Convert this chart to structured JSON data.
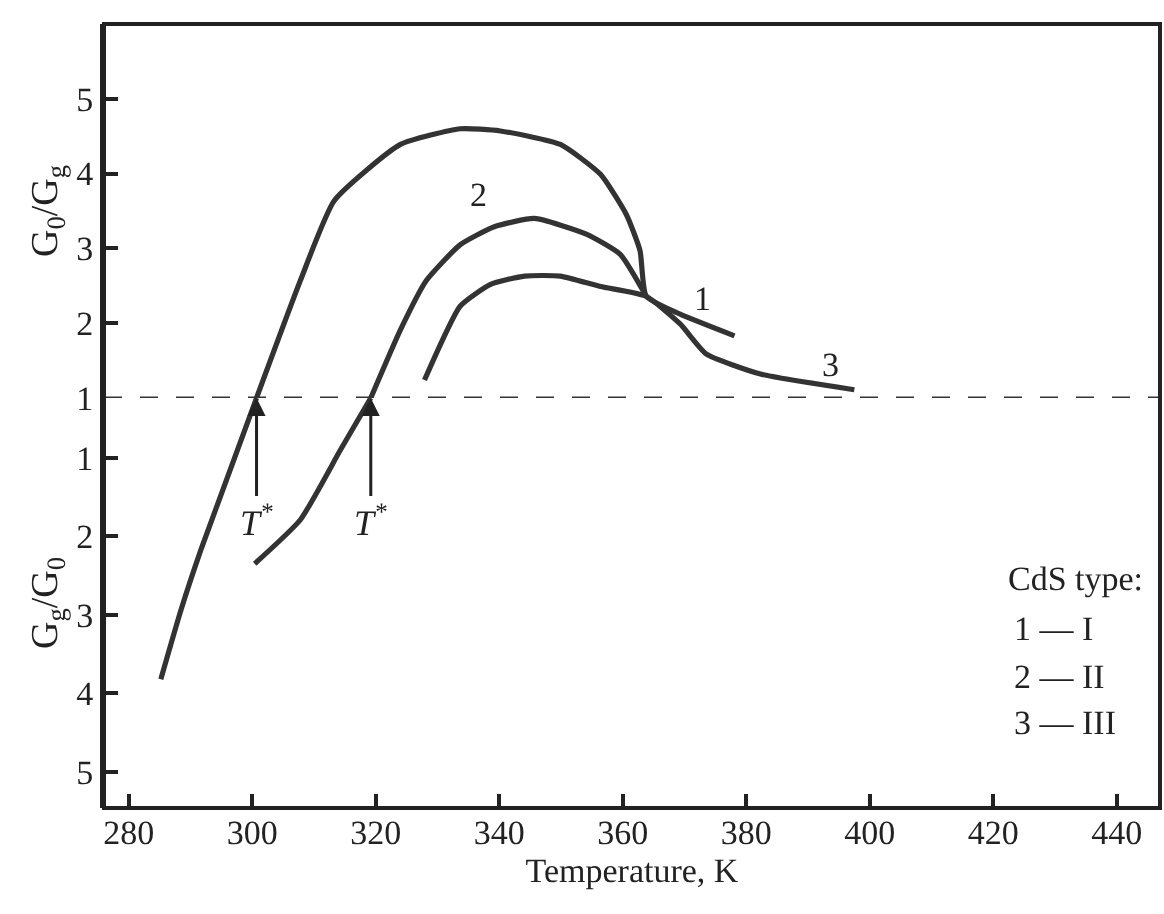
{
  "chart_data": [
    {
      "type": "line",
      "ylabel": "G$_{0}$/G$_{g}$",
      "xlim": [
        276,
        447
      ],
      "ylim": [
        1,
        6
      ],
      "yticks": [
        1,
        2,
        3,
        4,
        5
      ],
      "tick_labels": "y",
      "marker": "none",
      "line_style": "solid",
      "series": [
        {
          "color": "#333333",
          "x": [
            300.7,
            307.8,
            313.3,
            324.0,
            333.7,
            340.2,
            349.9,
            356.4,
            360.6,
            362.8,
            363.8,
            369.3,
            378.1
          ],
          "values": [
            1.0,
            2.57,
            3.64,
            4.39,
            4.6,
            4.57,
            4.39,
            3.99,
            3.45,
            2.97,
            2.36,
            2.12,
            1.83
          ]
        },
        {
          "color": "#333333",
          "x": [
            319.2,
            324.0,
            328.2,
            333.7,
            339.2,
            345.7,
            354.1,
            359.6,
            363.8
          ],
          "values": [
            1.0,
            1.91,
            2.57,
            3.05,
            3.29,
            3.4,
            3.19,
            2.92,
            2.36
          ]
        },
        {
          "color": "#333333",
          "x": [
            327.9,
            333.7,
            338.6,
            344.1,
            349.9,
            356.4,
            363.8,
            369.3,
            373.5,
            382.3,
            397.5
          ],
          "values": [
            1.24,
            2.23,
            2.52,
            2.63,
            2.63,
            2.49,
            2.36,
            1.99,
            1.59,
            1.32,
            1.11
          ]
        }
      ],
      "ref_lines": [
        {
          "axis": "y",
          "value": 1,
          "color": "#333333",
          "line_style": "dashed"
        }
      ],
      "annotations": [
        "1",
        "2",
        "3"
      ]
    },
    {
      "type": "line",
      "xlabel": "Temperature, K",
      "ylabel": "G$_{g}$/G$_{0}$",
      "xlim": [
        276,
        447
      ],
      "xticks": [
        280,
        300,
        320,
        340,
        360,
        380,
        400,
        420,
        440
      ],
      "ylim": [
        5.46,
        0.24
      ],
      "yticks": [
        1,
        2,
        3,
        4,
        5
      ],
      "marker": "none",
      "line_style": "solid",
      "series": [
        {
          "color": "#333333",
          "x": [
            285.2,
            288.5,
            291.7,
            300.7
          ],
          "values": [
            3.82,
            2.93,
            2.17,
            0.24
          ]
        },
        {
          "color": "#333333",
          "x": [
            300.4,
            307.8,
            314.3,
            319.2
          ],
          "values": [
            2.35,
            1.79,
            0.9,
            0.24
          ]
        }
      ],
      "annotations": [
        {
          "text": "T$^{*}$",
          "x": 300.7,
          "y": 0.24
        },
        {
          "text": "T$^{*}$",
          "x": 319.2,
          "y": 0.24
        },
        "CdS type:",
        "1 — I",
        "2 — II",
        "3 — III"
      ]
    }
  ]
}
